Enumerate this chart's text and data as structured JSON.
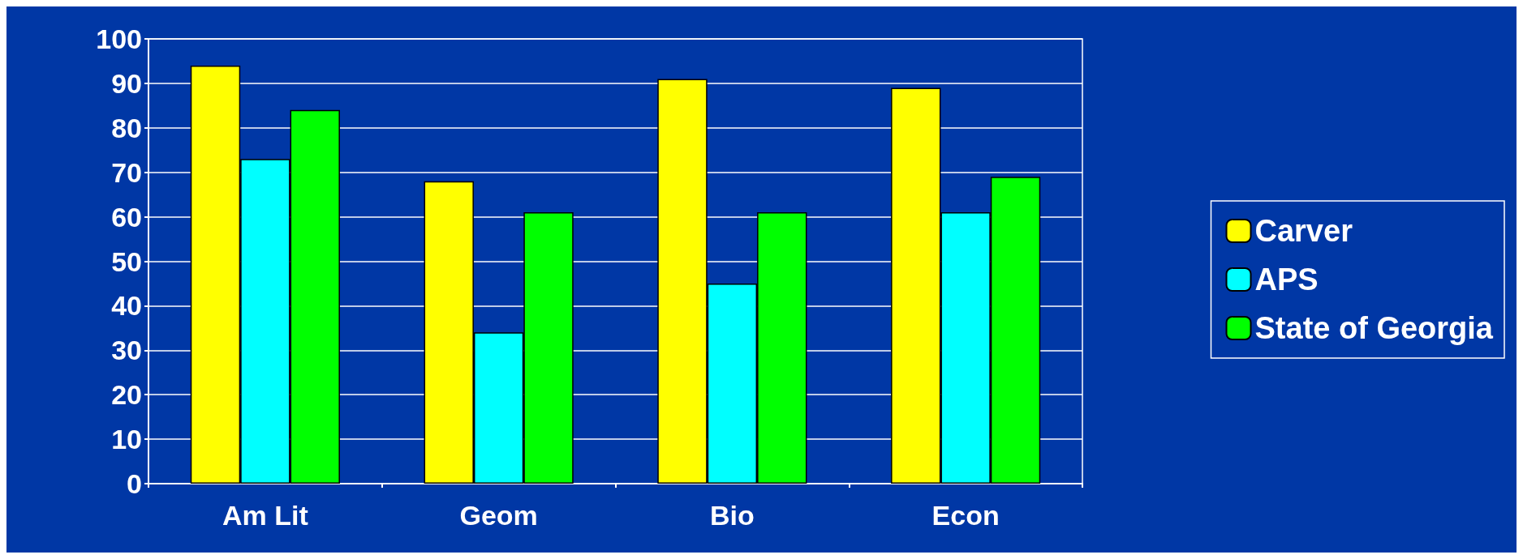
{
  "chart_data": {
    "type": "bar",
    "categories": [
      "Am Lit",
      "Geom",
      "Bio",
      "Econ"
    ],
    "series": [
      {
        "name": "Carver",
        "color": "#ffff00",
        "values": [
          94,
          68,
          91,
          89
        ]
      },
      {
        "name": "APS",
        "color": "#00ffff",
        "values": [
          73,
          34,
          45,
          61
        ]
      },
      {
        "name": "State of Georgia",
        "color": "#00ff00",
        "values": [
          84,
          61,
          61,
          69
        ]
      }
    ],
    "ylim": [
      0,
      100
    ],
    "yticks": [
      0,
      10,
      20,
      30,
      40,
      50,
      60,
      70,
      80,
      90,
      100
    ],
    "grid": "y",
    "legend": "right"
  }
}
